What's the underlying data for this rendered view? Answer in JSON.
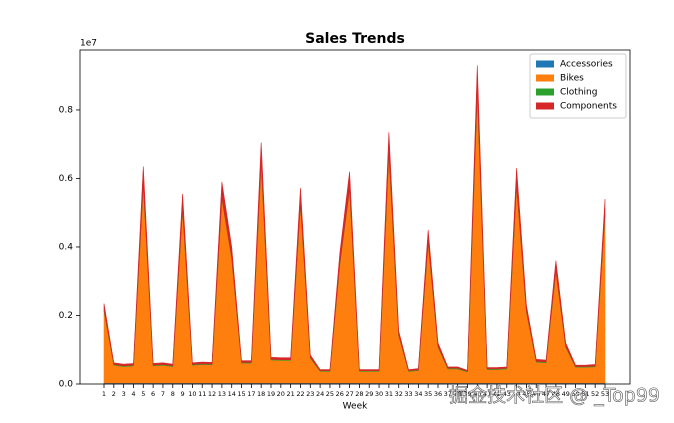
{
  "chart_data": {
    "type": "stacked_area",
    "title": "Sales Trends",
    "x_label": "Week",
    "offset_label": "1e7",
    "categories": [
      "1",
      "2",
      "3",
      "4",
      "5",
      "6",
      "7",
      "8",
      "9",
      "10",
      "11",
      "12",
      "13",
      "14",
      "15",
      "17",
      "18",
      "19",
      "20",
      "21",
      "22",
      "23",
      "24",
      "25",
      "26",
      "27",
      "28",
      "29",
      "30",
      "31",
      "32",
      "33",
      "34",
      "35",
      "36",
      "37",
      "38",
      "39",
      "40",
      "41",
      "42",
      "43",
      "44",
      "45",
      "46",
      "47",
      "48",
      "49",
      "50",
      "51",
      "52",
      "53"
    ],
    "series": [
      {
        "name": "Accessories",
        "color": "#1f77b4",
        "values": [
          0.003,
          0.003,
          0.003,
          0.003,
          0.003,
          0.003,
          0.003,
          0.003,
          0.003,
          0.003,
          0.003,
          0.003,
          0.003,
          0.003,
          0.003,
          0.003,
          0.003,
          0.003,
          0.003,
          0.003,
          0.003,
          0.003,
          0.003,
          0.003,
          0.003,
          0.003,
          0.003,
          0.003,
          0.003,
          0.003,
          0.003,
          0.003,
          0.003,
          0.003,
          0.003,
          0.003,
          0.003,
          0.003,
          0.003,
          0.003,
          0.003,
          0.003,
          0.003,
          0.003,
          0.003,
          0.003,
          0.003,
          0.003,
          0.003,
          0.003,
          0.003,
          0.003
        ]
      },
      {
        "name": "Bikes",
        "color": "#ff7f0e",
        "values": [
          0.211,
          0.052,
          0.048,
          0.05,
          0.579,
          0.05,
          0.052,
          0.048,
          0.506,
          0.052,
          0.054,
          0.053,
          0.538,
          0.363,
          0.058,
          0.058,
          0.644,
          0.067,
          0.066,
          0.066,
          0.521,
          0.073,
          0.034,
          0.034,
          0.345,
          0.565,
          0.034,
          0.034,
          0.034,
          0.671,
          0.138,
          0.034,
          0.036,
          0.409,
          0.105,
          0.041,
          0.041,
          0.032,
          0.851,
          0.039,
          0.039,
          0.041,
          0.575,
          0.207,
          0.061,
          0.059,
          0.326,
          0.105,
          0.046,
          0.046,
          0.047,
          0.492
        ]
      },
      {
        "name": "Clothing",
        "color": "#2ca02c",
        "values": [
          0.002,
          0.002,
          0.002,
          0.002,
          0.002,
          0.002,
          0.002,
          0.002,
          0.002,
          0.002,
          0.002,
          0.002,
          0.002,
          0.002,
          0.002,
          0.002,
          0.002,
          0.002,
          0.002,
          0.002,
          0.002,
          0.002,
          0.002,
          0.002,
          0.002,
          0.002,
          0.002,
          0.002,
          0.002,
          0.002,
          0.002,
          0.002,
          0.002,
          0.002,
          0.002,
          0.002,
          0.002,
          0.002,
          0.002,
          0.002,
          0.002,
          0.002,
          0.002,
          0.002,
          0.002,
          0.002,
          0.002,
          0.002,
          0.002,
          0.002,
          0.002,
          0.002
        ]
      },
      {
        "name": "Components",
        "color": "#d62728",
        "values": [
          0.019,
          0.005,
          0.005,
          0.005,
          0.051,
          0.005,
          0.005,
          0.005,
          0.044,
          0.005,
          0.005,
          0.005,
          0.047,
          0.032,
          0.005,
          0.005,
          0.056,
          0.006,
          0.006,
          0.006,
          0.046,
          0.007,
          0.003,
          0.003,
          0.03,
          0.05,
          0.003,
          0.003,
          0.003,
          0.059,
          0.012,
          0.003,
          0.004,
          0.036,
          0.01,
          0.004,
          0.004,
          0.003,
          0.074,
          0.004,
          0.004,
          0.004,
          0.05,
          0.018,
          0.006,
          0.006,
          0.029,
          0.01,
          0.004,
          0.004,
          0.005,
          0.043
        ]
      }
    ],
    "ylim": [
      0,
      0.975
    ],
    "yticks": [
      {
        "value": 0,
        "label": "0.0"
      },
      0.2,
      0.4,
      0.6,
      0.8
    ],
    "legend": "upper right",
    "watermark": "掘金技术社区 @ _Top99"
  }
}
